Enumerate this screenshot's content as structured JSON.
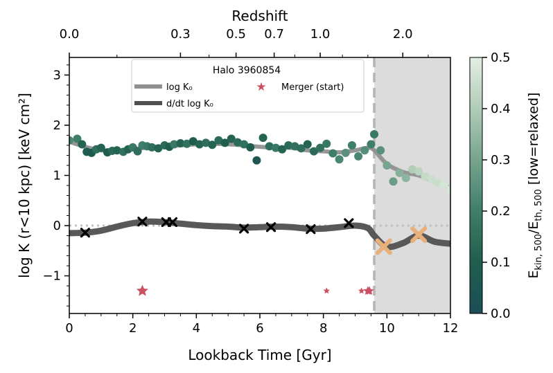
{
  "chart_data": {
    "type": "scatter",
    "title": "Halo 3960854",
    "xlabel": "Lookback Time [Gyr]",
    "ylabel": "log K (r<10 kpc) [keV cm²]",
    "x_top_label": "Redshift",
    "xlim": [
      0,
      12
    ],
    "ylim": [
      -1.75,
      3.35
    ],
    "x_ticks": [
      "0",
      "2",
      "4",
      "6",
      "8",
      "10",
      "12"
    ],
    "y_ticks": [
      "−1",
      "0",
      "1",
      "2",
      "3"
    ],
    "top_ticks": [
      {
        "z": "0.0",
        "t": 0.0
      },
      {
        "z": "0.3",
        "t": 3.5
      },
      {
        "z": "0.5",
        "t": 5.25
      },
      {
        "z": "0.7",
        "t": 6.45
      },
      {
        "z": "1.0",
        "t": 7.9
      },
      {
        "z": "2.0",
        "t": 10.5
      }
    ],
    "colorbar": {
      "label": "E_kin,500/E_th,500 [low=relaxed]",
      "range": [
        0.0,
        0.5
      ],
      "ticks": [
        "0.0",
        "0.1",
        "0.2",
        "0.3",
        "0.4",
        "0.5"
      ],
      "colors": [
        "#1b4e57",
        "#1f5e4d",
        "#3f7e6a",
        "#76a48e",
        "#b0cdb7",
        "#e3eee2"
      ]
    },
    "shaded_region": {
      "x_start": 9.6,
      "x_end": 12,
      "color": "#dcdcdc"
    },
    "vline": {
      "x": 9.6
    },
    "legend": {
      "position": "upper-center",
      "items": [
        {
          "label": "log K₀",
          "color": "#909090",
          "kind": "line"
        },
        {
          "label": "d/dt log K₀",
          "color": "#505050",
          "kind": "line"
        },
        {
          "label": "Merger (start)",
          "color": "#cc5060",
          "kind": "star"
        }
      ]
    },
    "series": [
      {
        "name": "log K₀",
        "color": "#909090",
        "x": [
          0,
          0.5,
          1,
          1.5,
          2,
          2.5,
          3,
          3.5,
          4,
          4.5,
          5,
          5.5,
          6,
          6.5,
          7,
          7.5,
          8,
          8.5,
          9,
          9.4,
          9.6,
          10,
          10.5,
          11,
          11.5,
          12
        ],
        "y": [
          1.67,
          1.57,
          1.5,
          1.48,
          1.52,
          1.56,
          1.58,
          1.6,
          1.62,
          1.63,
          1.62,
          1.6,
          1.57,
          1.55,
          1.55,
          1.5,
          1.48,
          1.46,
          1.5,
          1.55,
          1.5,
          1.23,
          1.07,
          1.0,
          0.88,
          0.75
        ]
      },
      {
        "name": "d/dt log K₀",
        "color": "#505050",
        "x": [
          0,
          0.5,
          1,
          1.5,
          2,
          2.5,
          3,
          3.5,
          4,
          4.5,
          5,
          5.5,
          6,
          6.5,
          7,
          7.5,
          8,
          8.5,
          9,
          9.4,
          9.6,
          10,
          10.5,
          11,
          11.5,
          12
        ],
        "y": [
          -0.15,
          -0.14,
          -0.1,
          -0.02,
          0.05,
          0.08,
          0.07,
          0.04,
          0.01,
          -0.01,
          -0.02,
          -0.04,
          -0.03,
          -0.02,
          -0.03,
          -0.06,
          -0.06,
          -0.03,
          0.0,
          -0.05,
          -0.2,
          -0.42,
          -0.35,
          -0.2,
          -0.32,
          -0.36
        ]
      }
    ],
    "scatter_points": {
      "x": [
        0.0,
        0.25,
        0.4,
        0.55,
        0.7,
        0.85,
        1.0,
        1.2,
        1.35,
        1.5,
        1.7,
        1.85,
        2.0,
        2.15,
        2.3,
        2.45,
        2.6,
        2.8,
        3.0,
        3.15,
        3.3,
        3.5,
        3.7,
        3.9,
        4.1,
        4.3,
        4.5,
        4.7,
        4.9,
        5.1,
        5.3,
        5.5,
        5.7,
        5.9,
        6.1,
        6.3,
        6.5,
        6.7,
        6.9,
        7.1,
        7.3,
        7.5,
        7.7,
        7.9,
        8.1,
        8.3,
        8.5,
        8.7,
        8.9,
        9.1,
        9.3,
        9.5,
        9.6,
        9.8,
        10.0,
        10.2,
        10.4,
        10.6,
        10.8,
        11.0,
        11.2,
        11.4,
        11.6,
        11.8,
        12.0
      ],
      "y": [
        1.7,
        1.73,
        1.62,
        1.47,
        1.45,
        1.52,
        1.55,
        1.46,
        1.49,
        1.5,
        1.47,
        1.52,
        1.56,
        1.48,
        1.6,
        1.58,
        1.56,
        1.54,
        1.6,
        1.57,
        1.62,
        1.64,
        1.63,
        1.68,
        1.62,
        1.65,
        1.61,
        1.7,
        1.65,
        1.73,
        1.66,
        1.62,
        1.56,
        1.3,
        1.75,
        1.58,
        1.55,
        1.52,
        1.6,
        1.58,
        1.54,
        1.62,
        1.48,
        1.55,
        1.63,
        1.44,
        1.32,
        1.45,
        1.6,
        1.38,
        1.5,
        1.62,
        1.82,
        1.5,
        1.2,
        0.88,
        1.05,
        0.95,
        1.12,
        1.08,
        0.98,
        0.92,
        0.85,
        0.82,
        0.72
      ],
      "c": [
        0.22,
        0.2,
        0.12,
        0.1,
        0.08,
        0.15,
        0.12,
        0.1,
        0.14,
        0.12,
        0.16,
        0.12,
        0.18,
        0.15,
        0.2,
        0.18,
        0.15,
        0.12,
        0.14,
        0.1,
        0.18,
        0.12,
        0.16,
        0.1,
        0.12,
        0.15,
        0.12,
        0.14,
        0.1,
        0.12,
        0.14,
        0.16,
        0.1,
        0.05,
        0.12,
        0.15,
        0.18,
        0.12,
        0.14,
        0.16,
        0.15,
        0.12,
        0.14,
        0.16,
        0.18,
        0.2,
        0.22,
        0.25,
        0.2,
        0.22,
        0.24,
        0.2,
        0.18,
        0.25,
        0.3,
        0.28,
        0.33,
        0.34,
        0.4,
        0.42,
        0.44,
        0.45,
        0.45,
        0.47,
        0.48
      ]
    },
    "extrema_marks": {
      "x": [
        0.5,
        2.3,
        3.05,
        3.25,
        5.5,
        6.35,
        7.6,
        8.8,
        9.9,
        11.0
      ],
      "y": [
        -0.14,
        0.08,
        0.07,
        0.07,
        -0.06,
        -0.03,
        -0.07,
        0.05,
        -0.42,
        -0.18
      ],
      "color_before": "#000000",
      "color_after": "#e8b07a"
    },
    "mergers": {
      "x": [
        2.3,
        8.1,
        9.2,
        9.4,
        9.45
      ],
      "y": [
        -1.3,
        -1.3,
        -1.3,
        -1.3,
        -1.3
      ],
      "sizes": [
        "large",
        "small",
        "small",
        "medium",
        "medium"
      ],
      "color": "#cc5060"
    },
    "zero_line": {
      "y": 0
    }
  }
}
